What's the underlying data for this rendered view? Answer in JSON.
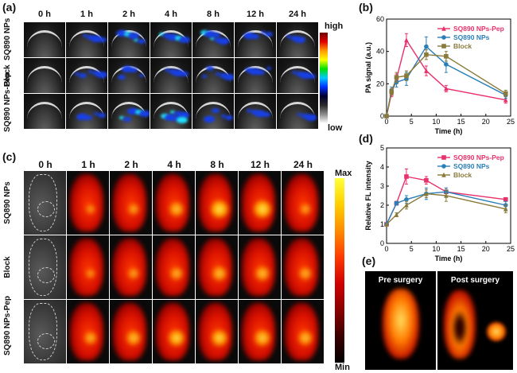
{
  "panels": {
    "a": {
      "label": "(a)",
      "times": [
        "0 h",
        "1 h",
        "2 h",
        "4 h",
        "8 h",
        "12 h",
        "24 h"
      ],
      "rows": [
        "SQ890 NPs",
        "Block",
        "SQ890 NPs-Pep"
      ],
      "colorbar_high": "high",
      "colorbar_low": "low"
    },
    "c": {
      "label": "(c)",
      "times": [
        "0 h",
        "1 h",
        "2 h",
        "4 h",
        "8 h",
        "12 h",
        "24 h"
      ],
      "rows": [
        "SQ890 NPs",
        "Block",
        "SQ890 NPs-Pep"
      ],
      "colorbar_max": "Max",
      "colorbar_min": "Min"
    },
    "b": {
      "label": "(b)"
    },
    "d": {
      "label": "(d)"
    },
    "e": {
      "label": "(e)",
      "pre": "Pre surgery",
      "post": "Post surgery"
    }
  },
  "chart_data": [
    {
      "panel": "b",
      "type": "line",
      "xlabel": "Time (h)",
      "ylabel": "PA signal (a.u.)",
      "xlim": [
        0,
        25
      ],
      "ylim": [
        0,
        60
      ],
      "xticks": [
        0,
        5,
        10,
        15,
        20,
        25
      ],
      "yticks": [
        0,
        20,
        40,
        60
      ],
      "legend_position": "top-right",
      "series": [
        {
          "name": "SQ890 NPs-Pep",
          "color": "#e8306a",
          "marker": "triangle",
          "x": [
            0,
            1,
            2,
            4,
            8,
            12,
            24
          ],
          "y": [
            0,
            14,
            23,
            47,
            28,
            17,
            10
          ],
          "err": [
            0,
            2,
            3,
            4,
            3,
            2,
            2
          ]
        },
        {
          "name": "SQ890 NPs",
          "color": "#2a7fb8",
          "marker": "circle",
          "x": [
            0,
            1,
            2,
            4,
            8,
            12,
            24
          ],
          "y": [
            0,
            16,
            21,
            23,
            43,
            32,
            13
          ],
          "err": [
            0,
            2,
            3,
            4,
            6,
            5,
            2
          ]
        },
        {
          "name": "Block",
          "color": "#8a7a3a",
          "marker": "square",
          "x": [
            0,
            1,
            2,
            4,
            8,
            12,
            24
          ],
          "y": [
            0,
            15,
            24,
            25,
            38,
            37,
            14
          ],
          "err": [
            0,
            2,
            3,
            3,
            3,
            3,
            2
          ]
        }
      ]
    },
    {
      "panel": "d",
      "type": "line",
      "xlabel": "Time (h)",
      "ylabel": "Relative FL intensity",
      "xlim": [
        0,
        25
      ],
      "ylim": [
        0,
        5
      ],
      "xticks": [
        0,
        5,
        10,
        15,
        20,
        25
      ],
      "yticks": [
        0,
        1,
        2,
        3,
        4,
        5
      ],
      "legend_position": "top-right",
      "series": [
        {
          "name": "SQ890 NPs-Pep",
          "color": "#e8306a",
          "marker": "square",
          "x": [
            0,
            2,
            4,
            8,
            12,
            24
          ],
          "y": [
            1,
            2.1,
            3.5,
            3.3,
            2.7,
            2.3
          ],
          "err": [
            0,
            0.1,
            0.4,
            0.2,
            0.2,
            0.1
          ]
        },
        {
          "name": "SQ890 NPs",
          "color": "#2a7fb8",
          "marker": "circle",
          "x": [
            0,
            2,
            4,
            8,
            12,
            24
          ],
          "y": [
            1,
            2.1,
            2.3,
            2.6,
            2.7,
            2.0
          ],
          "err": [
            0,
            0.1,
            0.2,
            0.3,
            0.2,
            0.2
          ]
        },
        {
          "name": "Block",
          "color": "#8a7a3a",
          "marker": "triangle",
          "x": [
            0,
            2,
            4,
            8,
            12,
            24
          ],
          "y": [
            1,
            1.5,
            2.0,
            2.6,
            2.5,
            1.8
          ],
          "err": [
            0,
            0.1,
            0.2,
            0.2,
            0.3,
            0.2
          ]
        }
      ]
    }
  ]
}
